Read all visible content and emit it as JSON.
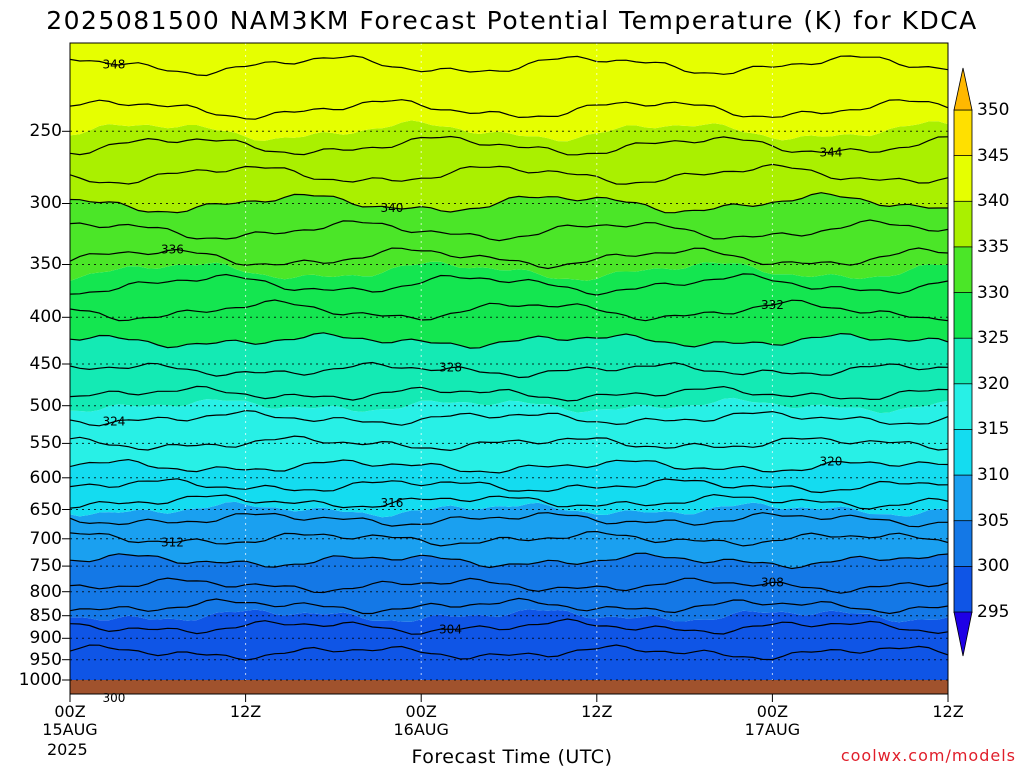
{
  "chart_data": {
    "type": "heatmap",
    "title": "2025081500 NAM3KM Forecast Potential Temperature (K) for KDCA",
    "xlabel": "Forecast Time (UTC)",
    "credit": "coolwx.com/models",
    "x_ticks": [
      {
        "hour": 0,
        "label": "00Z",
        "date": "15AUG",
        "year": "2025"
      },
      {
        "hour": 12,
        "label": "12Z",
        "date": "",
        "year": ""
      },
      {
        "hour": 24,
        "label": "00Z",
        "date": "16AUG",
        "year": ""
      },
      {
        "hour": 36,
        "label": "12Z",
        "date": "",
        "year": ""
      },
      {
        "hour": 48,
        "label": "00Z",
        "date": "17AUG",
        "year": ""
      },
      {
        "hour": 60,
        "label": "12Z",
        "date": "",
        "year": ""
      }
    ],
    "xlim": [
      0,
      60
    ],
    "y_ticks": [
      250,
      300,
      350,
      400,
      450,
      500,
      550,
      600,
      650,
      700,
      750,
      800,
      850,
      900,
      950,
      1000
    ],
    "ylim_hPa": [
      200,
      1000
    ],
    "y_scale": "log",
    "colorbar": {
      "levels": [
        295,
        300,
        305,
        310,
        315,
        320,
        325,
        330,
        335,
        340,
        345,
        350
      ],
      "labels": [
        "295",
        "300",
        "305",
        "310",
        "315",
        "320",
        "325",
        "330",
        "335",
        "340",
        "345",
        "350"
      ],
      "colors": [
        "#1e00e6",
        "#0a28e0",
        "#0f55e6",
        "#1478e6",
        "#1aa0f0",
        "#14dcf0",
        "#28f0e6",
        "#14eab4",
        "#14e650",
        "#4be628",
        "#aaf000",
        "#e6ff00",
        "#ffe000",
        "#ffb800"
      ]
    },
    "contour_interval_K": 2,
    "contour_label_values": [
      300,
      304,
      308,
      312,
      316,
      320,
      324,
      328,
      332,
      336,
      340,
      344,
      348
    ],
    "theta_profile_hPa": [
      {
        "p": 1000,
        "theta": 301
      },
      {
        "p": 950,
        "theta": 301.5
      },
      {
        "p": 900,
        "theta": 303
      },
      {
        "p": 850,
        "theta": 305
      },
      {
        "p": 800,
        "theta": 307.5
      },
      {
        "p": 750,
        "theta": 309.5
      },
      {
        "p": 700,
        "theta": 312
      },
      {
        "p": 650,
        "theta": 315
      },
      {
        "p": 600,
        "theta": 319
      },
      {
        "p": 550,
        "theta": 322
      },
      {
        "p": 500,
        "theta": 325
      },
      {
        "p": 450,
        "theta": 328.5
      },
      {
        "p": 400,
        "theta": 331.5
      },
      {
        "p": 350,
        "theta": 335.5
      },
      {
        "p": 300,
        "theta": 340
      },
      {
        "p": 250,
        "theta": 345
      },
      {
        "p": 200,
        "theta": 349
      }
    ],
    "grid": true,
    "legend_placement": "right"
  }
}
